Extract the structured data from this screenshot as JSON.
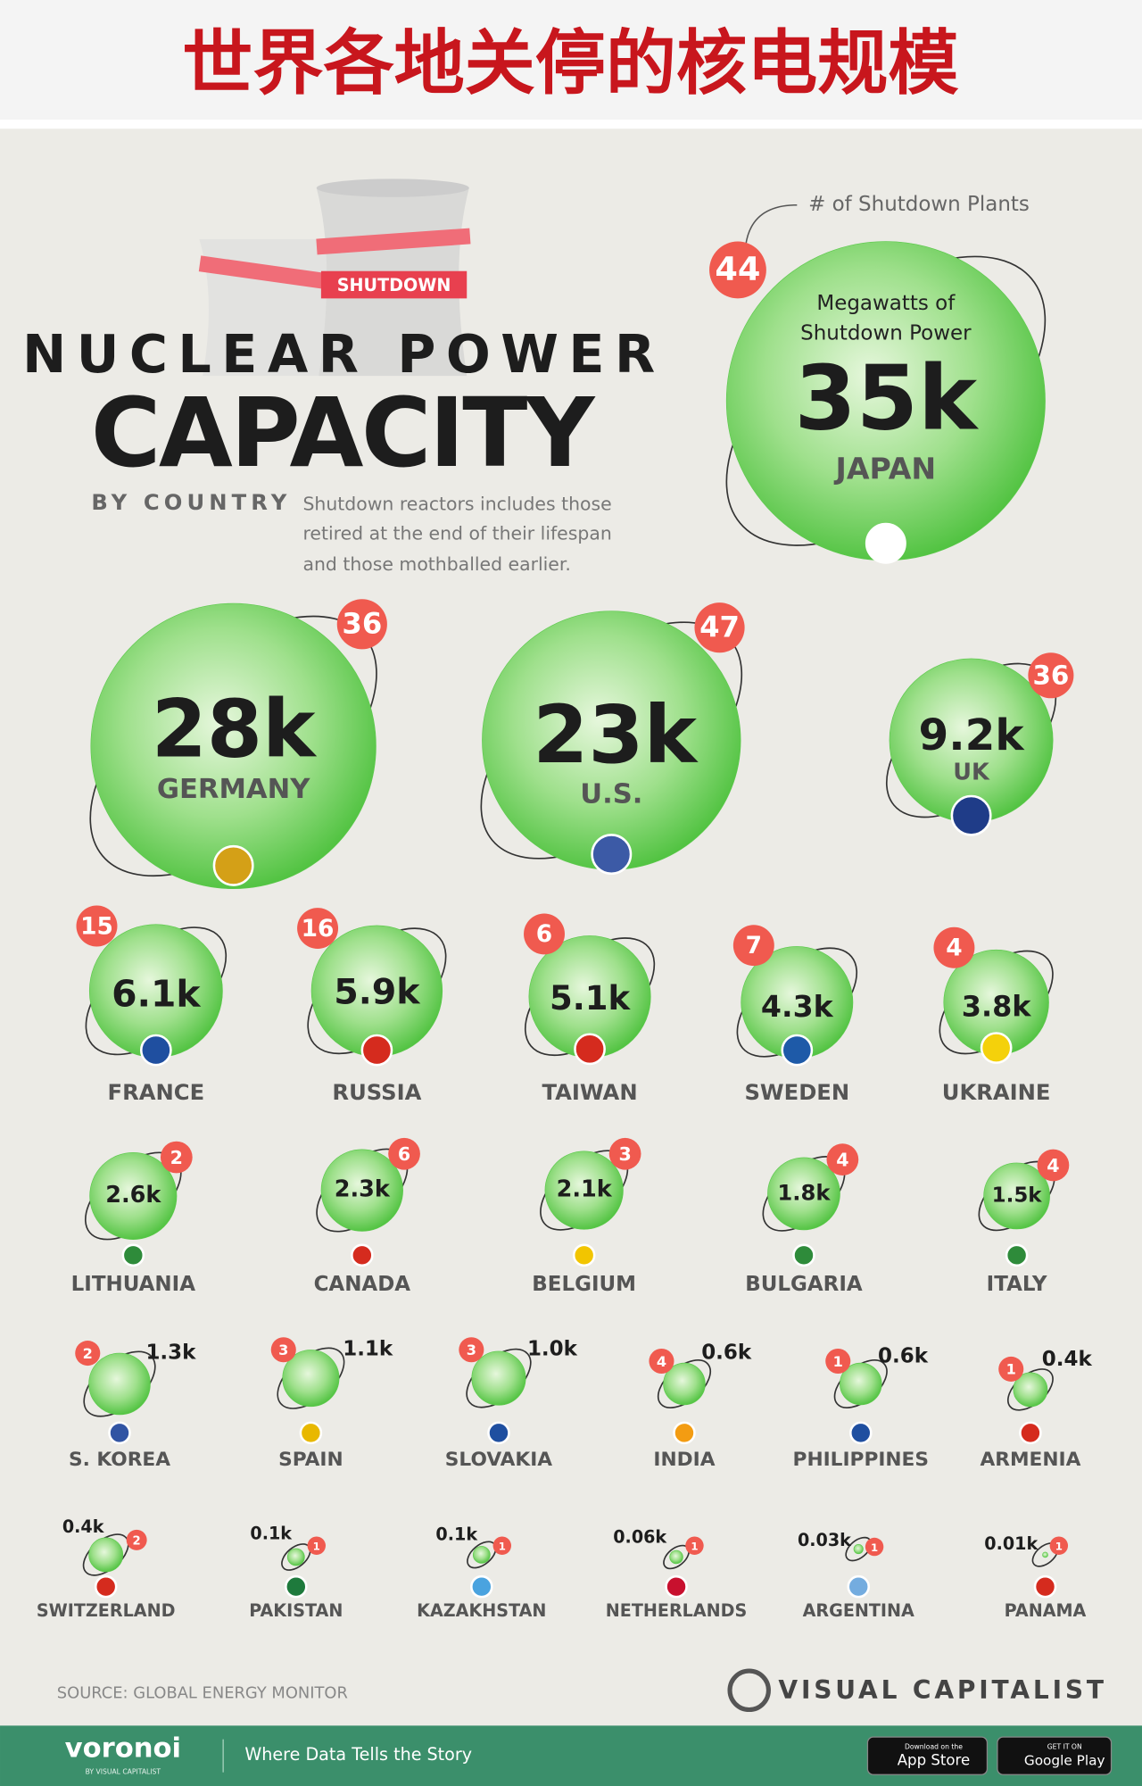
{
  "header": {
    "title": "世界各地关停的核电规模"
  },
  "chart_data": {
    "type": "bubble",
    "title": "NUCLEAR POWER",
    "title2": "CAPACITY",
    "subtitle": "BY COUNTRY",
    "note": [
      "Shutdown reactors includes those",
      "retired at the end of their lifespan",
      "and those mothballed earlier."
    ],
    "banner": "SHUTDOWN",
    "size_label": [
      "Megawatts of",
      "Shutdown Power"
    ],
    "count_label": "# of Shutdown Plants",
    "categories": [
      "JAPAN",
      "GERMANY",
      "U.S.",
      "UK",
      "FRANCE",
      "RUSSIA",
      "TAIWAN",
      "SWEDEN",
      "UKRAINE",
      "LITHUANIA",
      "CANADA",
      "BELGIUM",
      "BULGARIA",
      "ITALY",
      "S. KOREA",
      "SPAIN",
      "SLOVAKIA",
      "INDIA",
      "PHILIPPINES",
      "ARMENIA",
      "SWITZERLAND",
      "PAKISTAN",
      "KAZAKHSTAN",
      "NETHERLANDS",
      "ARGENTINA",
      "PANAMA"
    ],
    "values": [
      35000,
      28000,
      23000,
      9200,
      6100,
      5900,
      5100,
      4300,
      3800,
      2600,
      2300,
      2100,
      1800,
      1500,
      1300,
      1100,
      1000,
      600,
      600,
      400,
      400,
      100,
      100,
      60,
      30,
      10
    ],
    "value_labels": [
      "35k",
      "28k",
      "23k",
      "9.2k",
      "6.1k",
      "5.9k",
      "5.1k",
      "4.3k",
      "3.8k",
      "2.6k",
      "2.3k",
      "2.1k",
      "1.8k",
      "1.5k",
      "1.3k",
      "1.1k",
      "1.0k",
      "0.6k",
      "0.6k",
      "0.4k",
      "0.4k",
      "0.1k",
      "0.1k",
      "0.06k",
      "0.03k",
      "0.01k"
    ],
    "counts": [
      44,
      36,
      47,
      36,
      15,
      16,
      6,
      7,
      4,
      2,
      6,
      3,
      4,
      4,
      2,
      3,
      3,
      4,
      1,
      1,
      2,
      1,
      1,
      1,
      1,
      1
    ],
    "color": "#5cc94c",
    "source": "SOURCE: GLOBAL ENERGY MONITOR",
    "brand": "VISUAL CAPITALIST"
  },
  "footer": {
    "logo": "voronoi",
    "logo_sub": "BY VISUAL CAPITALIST",
    "tagline": "Where Data Tells the Story",
    "app_store": [
      "Download on the",
      "App Store"
    ],
    "google_play": [
      "GET IT ON",
      "Google Play"
    ]
  }
}
